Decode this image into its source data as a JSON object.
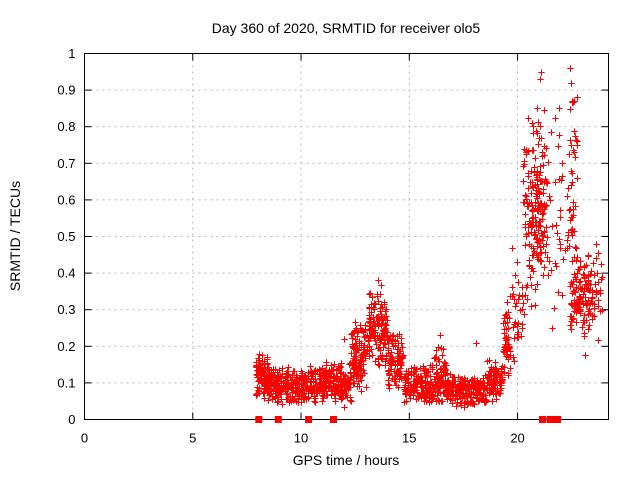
{
  "chart_data": {
    "type": "scatter",
    "title": "Day 360 of 2020, SRMTID for receiver olo5",
    "xlabel": "GPS time / hours",
    "ylabel": "SRMTID / TECUs",
    "xlim": [
      0,
      24.2
    ],
    "ylim": [
      0,
      1
    ],
    "xticks": [
      {
        "value": 0,
        "label": "0"
      },
      {
        "value": 5,
        "label": "5"
      },
      {
        "value": 10,
        "label": "10"
      },
      {
        "value": 15,
        "label": "15"
      },
      {
        "value": 20,
        "label": "20"
      }
    ],
    "yticks": [
      {
        "value": 0,
        "label": "0"
      },
      {
        "value": 0.1,
        "label": "0.1"
      },
      {
        "value": 0.2,
        "label": "0.2"
      },
      {
        "value": 0.3,
        "label": "0.3"
      },
      {
        "value": 0.4,
        "label": "0.4"
      },
      {
        "value": 0.5,
        "label": "0.5"
      },
      {
        "value": 0.6,
        "label": "0.6"
      },
      {
        "value": 0.7,
        "label": "0.7"
      },
      {
        "value": 0.8,
        "label": "0.8"
      },
      {
        "value": 0.9,
        "label": "0.9"
      },
      {
        "value": 1,
        "label": "1"
      }
    ],
    "grid": true,
    "legend_position": "none",
    "marker": "plus",
    "marker_color": "#ff0000",
    "grid_color": "#b8b8b8",
    "border_color": "#000000",
    "data_time_span_hours": [
      7.9,
      23.9
    ],
    "clusters": [
      {
        "x0": 7.9,
        "x1": 8.5,
        "n": 90,
        "y_mean": 0.115,
        "y_sd": 0.035,
        "y_min": 0.04,
        "y_max": 0.2
      },
      {
        "x0": 8.5,
        "x1": 9.7,
        "n": 150,
        "y_mean": 0.095,
        "y_sd": 0.03,
        "y_min": 0.03,
        "y_max": 0.18
      },
      {
        "x0": 9.7,
        "x1": 10.4,
        "n": 90,
        "y_mean": 0.09,
        "y_sd": 0.025,
        "y_min": 0.04,
        "y_max": 0.15
      },
      {
        "x0": 10.4,
        "x1": 11.3,
        "n": 120,
        "y_mean": 0.1,
        "y_sd": 0.03,
        "y_min": 0.04,
        "y_max": 0.19
      },
      {
        "x0": 11.3,
        "x1": 12.3,
        "n": 130,
        "y_mean": 0.1,
        "y_sd": 0.035,
        "y_min": 0.03,
        "y_max": 0.21
      },
      {
        "x0": 12.3,
        "x1": 13.1,
        "n": 120,
        "y_mean": 0.17,
        "y_sd": 0.05,
        "y_min": 0.06,
        "y_max": 0.3
      },
      {
        "x0": 13.1,
        "x1": 14.0,
        "n": 130,
        "y_mean": 0.25,
        "y_sd": 0.06,
        "y_min": 0.1,
        "y_max": 0.38
      },
      {
        "x0": 14.0,
        "x1": 14.7,
        "n": 95,
        "y_mean": 0.16,
        "y_sd": 0.045,
        "y_min": 0.06,
        "y_max": 0.27
      },
      {
        "x0": 14.7,
        "x1": 16.1,
        "n": 160,
        "y_mean": 0.1,
        "y_sd": 0.03,
        "y_min": 0.04,
        "y_max": 0.17
      },
      {
        "x0": 16.1,
        "x1": 16.7,
        "n": 80,
        "y_mean": 0.12,
        "y_sd": 0.045,
        "y_min": 0.05,
        "y_max": 0.23
      },
      {
        "x0": 16.7,
        "x1": 18.6,
        "n": 220,
        "y_mean": 0.08,
        "y_sd": 0.025,
        "y_min": 0.03,
        "y_max": 0.14
      },
      {
        "x0": 18.6,
        "x1": 19.3,
        "n": 85,
        "y_mean": 0.11,
        "y_sd": 0.03,
        "y_min": 0.05,
        "y_max": 0.18
      },
      {
        "x0": 19.3,
        "x1": 19.65,
        "n": 45,
        "y_mean": 0.2,
        "y_sd": 0.06,
        "y_min": 0.09,
        "y_max": 0.33
      },
      {
        "x0": 19.65,
        "x1": 20.25,
        "n": 35,
        "y_mean": 0.3,
        "y_sd": 0.09,
        "y_min": 0.13,
        "y_max": 0.48
      },
      {
        "x0": 20.25,
        "x1": 21.05,
        "n": 110,
        "y_mean": 0.55,
        "y_sd": 0.16,
        "y_min": 0.2,
        "y_max": 0.88
      },
      {
        "x0": 20.8,
        "x1": 21.35,
        "n": 90,
        "y_mean": 0.62,
        "y_sd": 0.12,
        "y_min": 0.3,
        "y_max": 0.93
      },
      {
        "x0": 21.4,
        "x1": 22.2,
        "n": 30,
        "y_mean": 0.55,
        "y_sd": 0.2,
        "y_min": 0.17,
        "y_max": 0.9
      },
      {
        "x0": 22.25,
        "x1": 22.75,
        "n": 45,
        "y_mean": 0.65,
        "y_sd": 0.15,
        "y_min": 0.4,
        "y_max": 0.95
      },
      {
        "x0": 22.4,
        "x1": 23.45,
        "n": 125,
        "y_mean": 0.34,
        "y_sd": 0.06,
        "y_min": 0.17,
        "y_max": 0.52
      },
      {
        "x0": 23.45,
        "x1": 23.9,
        "n": 25,
        "y_mean": 0.35,
        "y_sd": 0.07,
        "y_min": 0.2,
        "y_max": 0.48
      }
    ],
    "highlight_points": [
      [
        13.55,
        0.38
      ],
      [
        21.02,
        0.93
      ],
      [
        21.08,
        0.95
      ],
      [
        22.42,
        0.96
      ],
      [
        22.46,
        0.92
      ],
      [
        22.5,
        0.87
      ],
      [
        21.9,
        0.85
      ],
      [
        21.6,
        0.25
      ],
      [
        18.1,
        0.21
      ],
      [
        16.4,
        0.23
      ],
      [
        8.95,
        0.05
      ],
      [
        12.0,
        0.22
      ],
      [
        19.5,
        0.32
      ],
      [
        23.1,
        0.175
      ]
    ],
    "zero_flag_markers": {
      "marker": "filled-square",
      "color": "#ff0000",
      "x_hours": [
        8.05,
        8.95,
        10.35,
        11.5,
        21.15,
        21.5,
        21.75,
        21.85
      ],
      "y": 0
    }
  }
}
